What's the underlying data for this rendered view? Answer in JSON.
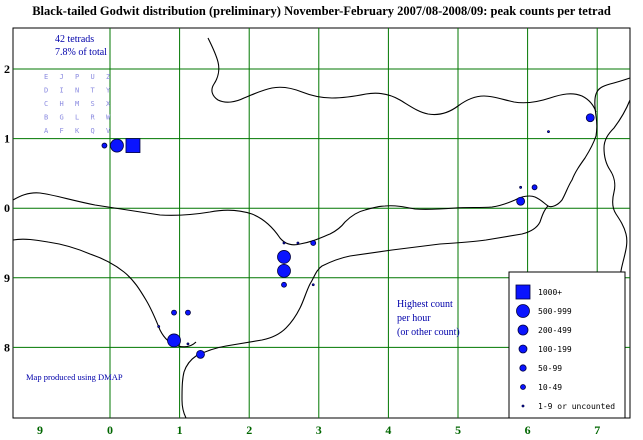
{
  "title": "Black-tailed Godwit distribution (preliminary) November-February 2007/08-2008/09: peak counts per tetrad",
  "summary": {
    "tetrads": "42 tetrads",
    "percent": "7.8% of total"
  },
  "tetrad_key": [
    [
      "E",
      "J",
      "P",
      "U",
      "Z"
    ],
    [
      "D",
      "I",
      "N",
      "T",
      "Y"
    ],
    [
      "C",
      "H",
      "M",
      "S",
      "X"
    ],
    [
      "B",
      "G",
      "L",
      "R",
      "W"
    ],
    [
      "A",
      "F",
      "K",
      "Q",
      "V"
    ]
  ],
  "x_axis_labels": [
    "9",
    "0",
    "1",
    "2",
    "3",
    "4",
    "5",
    "6",
    "7"
  ],
  "y_axis_labels": [
    "2",
    "1",
    "0",
    "9",
    "8"
  ],
  "legend": {
    "heading": [
      "Highest count",
      "per hour",
      "(or other count)"
    ],
    "classes": [
      {
        "label": "1000+",
        "shape": "square"
      },
      {
        "label": "500-999",
        "shape": "circle"
      },
      {
        "label": "200-499",
        "shape": "circle"
      },
      {
        "label": "100-199",
        "shape": "circle"
      },
      {
        "label": "50-99",
        "shape": "circle"
      },
      {
        "label": "10-49",
        "shape": "circle"
      },
      {
        "label": "1-9 or uncounted",
        "shape": "circle"
      }
    ]
  },
  "credit": "Map produced using DMAP",
  "colors": {
    "grid": "#007700",
    "symbol": "#0a14ff",
    "label": "#0000aa"
  },
  "chart_data": {
    "type": "scatter",
    "title": "Black-tailed Godwit distribution (preliminary) November-February 2007/08-2008/09: peak counts per tetrad",
    "points": [
      {
        "x": 0.1,
        "y": 0.9,
        "class": "500-999"
      },
      {
        "x": 0.33,
        "y": 0.9,
        "class": "1000+"
      },
      {
        "x": -0.08,
        "y": 0.9,
        "class": "10-49"
      },
      {
        "x": 0.92,
        "y": 8.1,
        "class": "500-999"
      },
      {
        "x": 0.92,
        "y": 8.5,
        "class": "10-49"
      },
      {
        "x": 1.12,
        "y": 8.5,
        "class": "10-49"
      },
      {
        "x": 1.3,
        "y": 7.9,
        "class": "100-199"
      },
      {
        "x": 0.7,
        "y": 8.3,
        "class": "1-9 or uncounted"
      },
      {
        "x": 1.12,
        "y": 8.05,
        "class": "1-9 or uncounted"
      },
      {
        "x": 2.5,
        "y": 9.3,
        "class": "500-999"
      },
      {
        "x": 2.5,
        "y": 9.1,
        "class": "500-999"
      },
      {
        "x": 2.5,
        "y": 8.9,
        "class": "10-49"
      },
      {
        "x": 2.5,
        "y": 9.5,
        "class": "1-9 or uncounted"
      },
      {
        "x": 2.7,
        "y": 9.5,
        "class": "1-9 or uncounted"
      },
      {
        "x": 2.92,
        "y": 9.5,
        "class": "10-49"
      },
      {
        "x": 2.92,
        "y": 8.9,
        "class": "1-9 or uncounted"
      },
      {
        "x": 5.9,
        "y": 0.1,
        "class": "100-199"
      },
      {
        "x": 5.9,
        "y": 0.3,
        "class": "1-9 or uncounted"
      },
      {
        "x": 6.1,
        "y": 0.3,
        "class": "10-49"
      },
      {
        "x": 6.9,
        "y": 1.3,
        "class": "100-199"
      },
      {
        "x": 6.3,
        "y": 1.1,
        "class": "1-9 or uncounted"
      }
    ]
  }
}
